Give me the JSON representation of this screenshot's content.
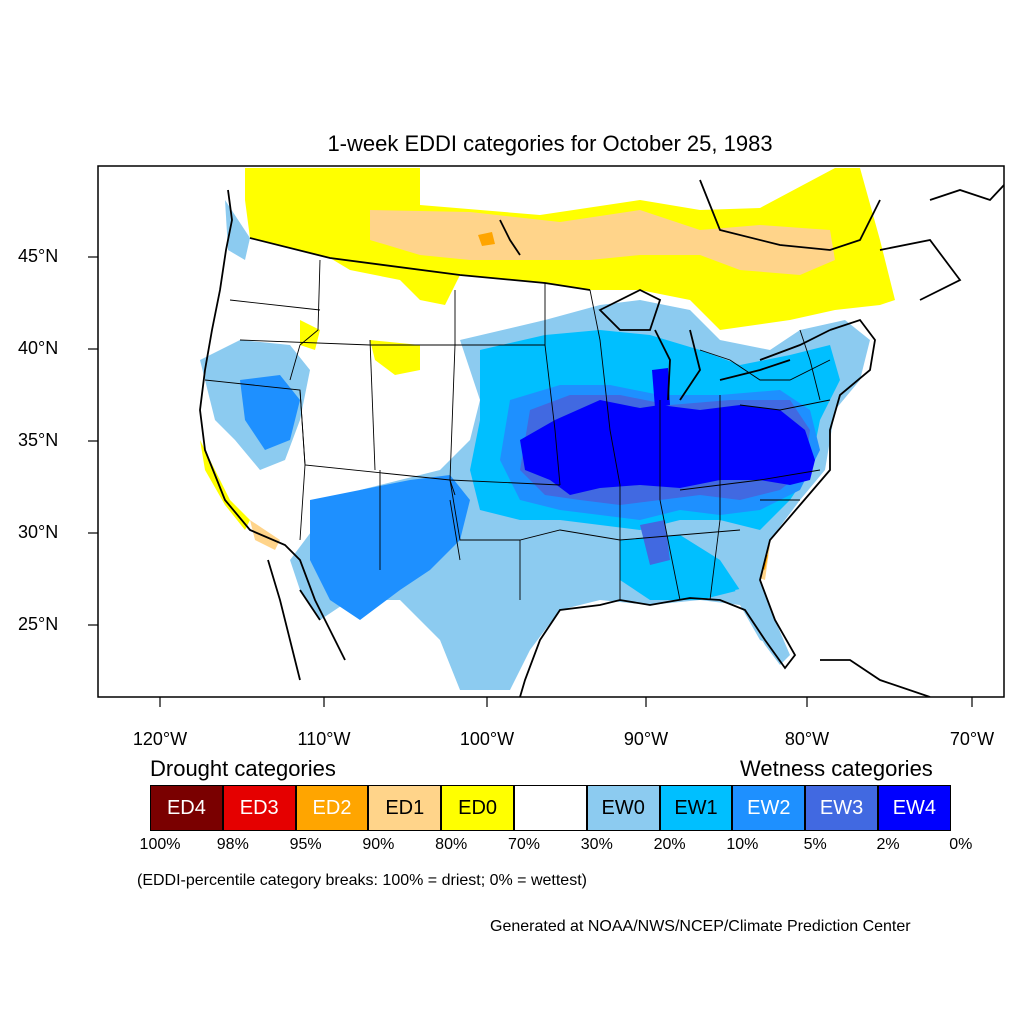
{
  "title": "1-week EDDI categories for October 25, 1983",
  "lat_labels": [
    "45°N",
    "40°N",
    "35°N",
    "30°N",
    "25°N"
  ],
  "lon_labels": [
    "120°W",
    "110°W",
    "100°W",
    "90°W",
    "80°W",
    "70°W"
  ],
  "legend": {
    "drought_title": "Drought categories",
    "wetness_title": "Wetness categories",
    "categories": [
      {
        "label": "ED4",
        "color": "#7a0000",
        "text_color": "#ffffff"
      },
      {
        "label": "ED3",
        "color": "#e50000",
        "text_color": "#ffffff"
      },
      {
        "label": "ED2",
        "color": "#ffa500",
        "text_color": "#ffffff"
      },
      {
        "label": "ED1",
        "color": "#ffd48a",
        "text_color": "#000000"
      },
      {
        "label": "ED0",
        "color": "#ffff00",
        "text_color": "#000000"
      },
      {
        "label": "",
        "color": "#ffffff",
        "text_color": "#000000"
      },
      {
        "label": "EW0",
        "color": "#8ccbf0",
        "text_color": "#000000"
      },
      {
        "label": "EW1",
        "color": "#00bfff",
        "text_color": "#000000"
      },
      {
        "label": "EW2",
        "color": "#1e90ff",
        "text_color": "#ffffff"
      },
      {
        "label": "EW3",
        "color": "#4169e1",
        "text_color": "#ffffff"
      },
      {
        "label": "EW4",
        "color": "#0000ff",
        "text_color": "#ffffff"
      }
    ],
    "percent_breaks": [
      "100%",
      "98%",
      "95%",
      "90%",
      "80%",
      "70%",
      "30%",
      "20%",
      "10%",
      "5%",
      "2%",
      "0%"
    ]
  },
  "note": "(EDDI-percentile category breaks: 100% = driest; 0% = wettest)",
  "credit": "Generated at NOAA/NWS/NCEP/Climate Prediction Center"
}
